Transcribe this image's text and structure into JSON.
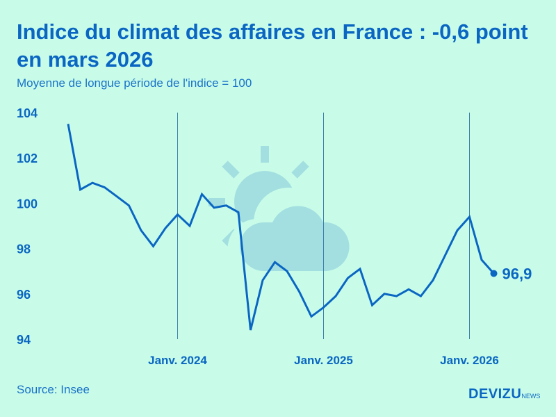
{
  "header": {
    "title": "Indice du climat des affaires en France : -0,6 point en mars 2026",
    "subtitle": "Moyenne de longue période de l'indice = 100"
  },
  "footer": {
    "source": "Source: Insee",
    "logo_main": "DEVIZU",
    "logo_sub": "NEWS"
  },
  "chart_data": {
    "type": "line",
    "title": "Indice du climat des affaires en France : -0,6 point en mars 2026",
    "subtitle": "Moyenne de longue période de l'indice = 100",
    "x": [
      "2023-04",
      "2023-05",
      "2023-06",
      "2023-07",
      "2023-08",
      "2023-09",
      "2023-10",
      "2023-11",
      "2023-12",
      "2024-01",
      "2024-02",
      "2024-03",
      "2024-04",
      "2024-05",
      "2024-06",
      "2024-07",
      "2024-08",
      "2024-09",
      "2024-10",
      "2024-11",
      "2024-12",
      "2025-01",
      "2025-02",
      "2025-03",
      "2025-04",
      "2025-05",
      "2025-06",
      "2025-07",
      "2025-08",
      "2025-09",
      "2025-10",
      "2025-11",
      "2025-12",
      "2026-01",
      "2026-02",
      "2026-03"
    ],
    "values": [
      103.5,
      100.6,
      100.9,
      100.7,
      100.3,
      99.9,
      98.8,
      98.1,
      98.9,
      99.5,
      99.0,
      100.4,
      99.8,
      99.9,
      99.6,
      94.4,
      96.6,
      97.4,
      97.0,
      96.1,
      95.0,
      95.4,
      95.9,
      96.7,
      97.1,
      95.5,
      96.0,
      95.9,
      96.2,
      95.9,
      96.6,
      97.7,
      98.8,
      99.4,
      97.5,
      96.9
    ],
    "ylim": [
      94,
      104
    ],
    "yticks": [
      "94",
      "96",
      "98",
      "100",
      "102",
      "104"
    ],
    "xticks": [
      {
        "at": "2024-01",
        "label": "Janv. 2024"
      },
      {
        "at": "2025-01",
        "label": "Janv. 2025"
      },
      {
        "at": "2026-01",
        "label": "Janv. 2026"
      }
    ],
    "end_label": "96,9",
    "grid": "vertical lines at January",
    "colors": {
      "line": "#0a66c2",
      "background": "#c8fce9",
      "weather_icon": "#a3dfe0"
    }
  }
}
